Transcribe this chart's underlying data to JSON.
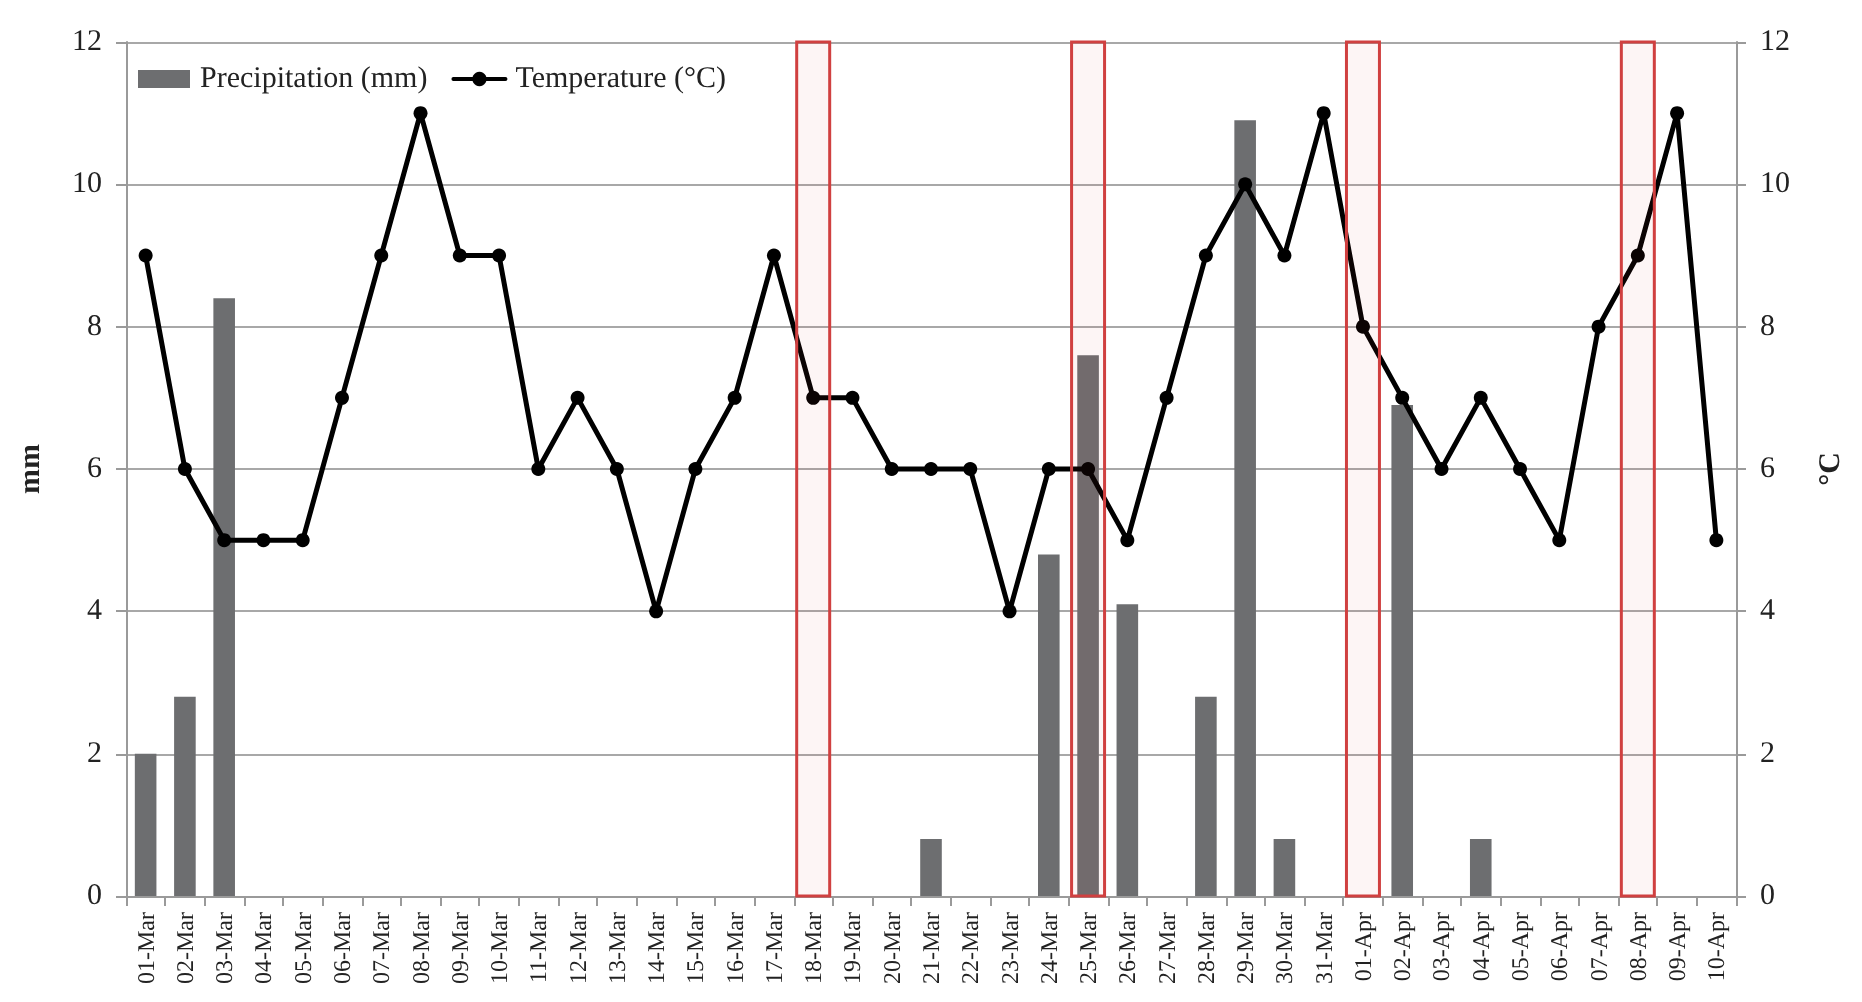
{
  "chart_data": {
    "type": "bar",
    "ylabel": "mm",
    "y2label": "°C",
    "categories": [
      "01-Mar",
      "02-Mar",
      "03-Mar",
      "04-Mar",
      "05-Mar",
      "06-Mar",
      "07-Mar",
      "08-Mar",
      "09-Mar",
      "10-Mar",
      "11-Mar",
      "12-Mar",
      "13-Mar",
      "14-Mar",
      "15-Mar",
      "16-Mar",
      "17-Mar",
      "18-Mar",
      "19-Mar",
      "20-Mar",
      "21-Mar",
      "22-Mar",
      "23-Mar",
      "24-Mar",
      "25-Mar",
      "26-Mar",
      "27-Mar",
      "28-Mar",
      "29-Mar",
      "30-Mar",
      "31-Mar",
      "01-Apr",
      "02-Apr",
      "03-Apr",
      "04-Apr",
      "05-Apr",
      "06-Apr",
      "07-Apr",
      "08-Apr",
      "09-Apr",
      "10-Apr"
    ],
    "series": [
      {
        "name": "Precipitation (mm)",
        "color": "#6d6e70",
        "values": [
          2,
          2.8,
          8.4,
          0,
          0,
          0,
          0,
          0,
          0,
          0,
          0,
          0,
          0,
          0,
          0,
          0,
          0,
          0,
          0,
          0,
          0.8,
          0,
          0,
          4.8,
          7.6,
          4.1,
          0,
          2.8,
          10.9,
          0.8,
          0,
          0,
          6.9,
          0,
          0.8,
          0,
          0,
          0,
          0,
          0,
          0
        ]
      },
      {
        "name": "Temperature (°C)",
        "type": "line",
        "axis": "y2",
        "color": "#000000",
        "values": [
          9,
          6,
          5,
          5,
          5,
          7,
          9,
          11,
          9,
          9,
          6,
          7,
          6,
          4,
          6,
          7,
          9,
          7,
          7,
          6,
          6,
          6,
          4,
          6,
          6,
          5,
          7,
          9,
          10,
          9,
          11,
          8,
          7,
          6,
          7,
          6,
          5,
          8,
          9,
          11,
          5
        ]
      }
    ],
    "ylim": [
      0,
      12
    ],
    "yticks": [
      0,
      2,
      4,
      6,
      8,
      10,
      12
    ],
    "y2lim": [
      0,
      12
    ],
    "y2ticks": [
      0,
      2,
      4,
      6,
      8,
      10,
      12
    ],
    "grid": "y",
    "legend": "top left",
    "marker": "circle",
    "line_style": "solid",
    "bands": [
      {
        "axis": "x",
        "from": "18-Mar",
        "to": "18-Mar",
        "color": "#d04040"
      },
      {
        "axis": "x",
        "from": "25-Mar",
        "to": "25-Mar",
        "color": "#d04040"
      },
      {
        "axis": "x",
        "from": "01-Apr",
        "to": "01-Apr",
        "color": "#d04040"
      },
      {
        "axis": "x",
        "from": "08-Apr",
        "to": "08-Apr",
        "color": "#d04040"
      }
    ]
  }
}
